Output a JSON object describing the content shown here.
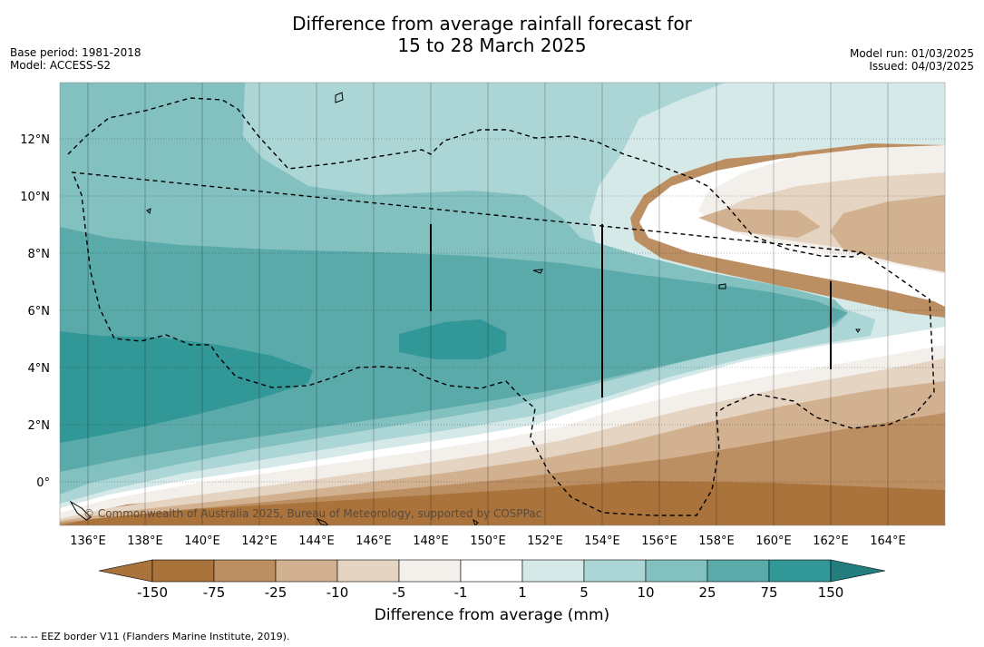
{
  "title": {
    "line1": "Difference from average rainfall forecast for",
    "line2": "15 to 28 March 2025"
  },
  "meta_left": {
    "base_period": "Base period: 1981-2018",
    "model": "Model: ACCESS-S2"
  },
  "meta_right": {
    "model_run": "Model run: 01/03/2025",
    "issued": "Issued: 04/03/2025"
  },
  "map": {
    "lon_labels": [
      "136°E",
      "138°E",
      "140°E",
      "142°E",
      "144°E",
      "146°E",
      "148°E",
      "150°E",
      "152°E",
      "154°E",
      "156°E",
      "158°E",
      "160°E",
      "162°E",
      "164°E"
    ],
    "lat_labels": [
      "12°N",
      "10°N",
      "8°N",
      "6°N",
      "4°N",
      "2°N",
      "0°"
    ],
    "copyright": "© Commonwealth of Australia 2025, Bureau of Meteorology, supported by COSPPac",
    "colors": {
      "le_-150": "#a9733b",
      "-150_-75": "#bc8f63",
      "-75_-25": "#d2b190",
      "-25_-10": "#e6d4c3",
      "-10_-5": "#f3efea",
      "-5_-1": "#ffffff",
      "-1_1": "#ffffff",
      "1_5": "#d6e9e9",
      "5_10": "#acd6d6",
      "10_25": "#83c0c0",
      "25_75": "#5aaaaa",
      "75_150": "#329797",
      "ge_150": "#247d7d"
    }
  },
  "colorbar": {
    "tick_labels": [
      "-150",
      "-75",
      "-25",
      "-10",
      "-5",
      "-1",
      "1",
      "5",
      "10",
      "25",
      "75",
      "150"
    ],
    "title": "Difference from average (mm)"
  },
  "footer": "--  --  -- EEZ border V11 (Flanders Marine Institute, 2019)."
}
